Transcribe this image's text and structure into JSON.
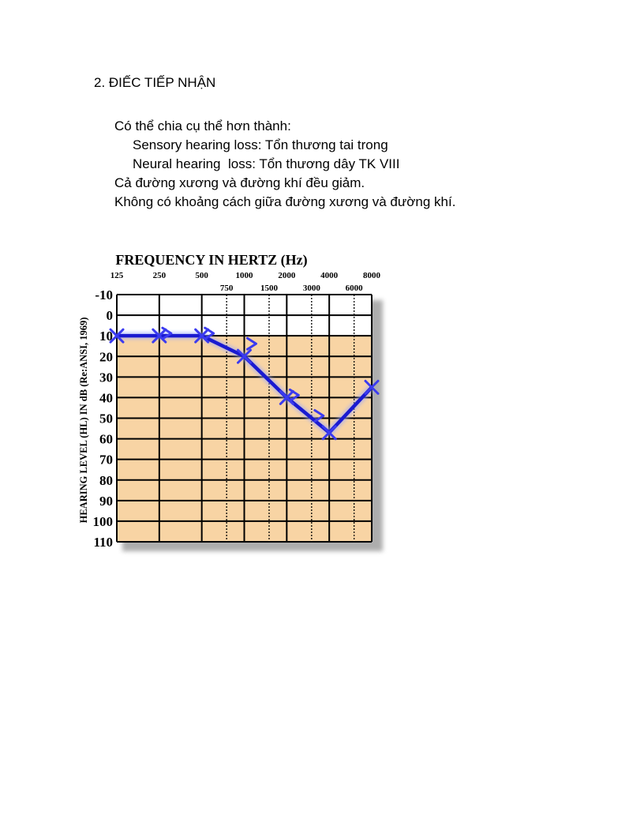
{
  "heading": "2. ĐIẾC TIẾP NHẬN",
  "intro_lines": [
    "Có thể chia cụ thể hơn thành:",
    "Sensory hearing loss: Tổn thương tai trong",
    "Neural hearing  loss: Tổn thương dây TK VIII",
    "Cả đường xương và đường khí đều giảm.",
    "Không có khoảng cách giữa đường xương và đường khí."
  ],
  "chart_data": {
    "type": "line",
    "title": "FREQUENCY IN HERTZ (Hz)",
    "ylabel": "HEARING LEVEL (HL) IN dB (Re:ANSI, 1969)",
    "x_major": [
      125,
      250,
      500,
      1000,
      2000,
      4000,
      8000
    ],
    "x_minor": [
      750,
      1500,
      3000,
      6000
    ],
    "x_major_labels": [
      "125",
      "250",
      "500",
      "1000",
      "2000",
      "4000",
      "8000"
    ],
    "x_minor_labels": [
      "750",
      "1500",
      "3000",
      "6000"
    ],
    "y_ticks": [
      -10,
      0,
      10,
      20,
      30,
      40,
      50,
      60,
      70,
      80,
      90,
      100,
      110
    ],
    "y_tick_labels": [
      "-10",
      "0",
      "10",
      "20",
      "30",
      "40",
      "50",
      "60",
      "70",
      "80",
      "90",
      "100",
      "110"
    ],
    "ylim": [
      -10,
      110
    ],
    "y_inverted": true,
    "shaded_from_db": 10,
    "colors": {
      "shade": "#f8d4a4",
      "line": "#1a1ad0",
      "marker": "#3b3bf0",
      "grid": "#000000"
    },
    "series": [
      {
        "marker": "x",
        "x": [
          125,
          250,
          500,
          1000,
          2000,
          4000,
          8000
        ],
        "y": [
          10,
          10,
          10,
          20,
          40,
          57,
          35
        ]
      },
      {
        "marker": ">",
        "x": [
          250,
          500,
          1000,
          2000,
          3000
        ],
        "y": [
          10,
          10,
          15,
          40,
          50
        ]
      }
    ]
  }
}
